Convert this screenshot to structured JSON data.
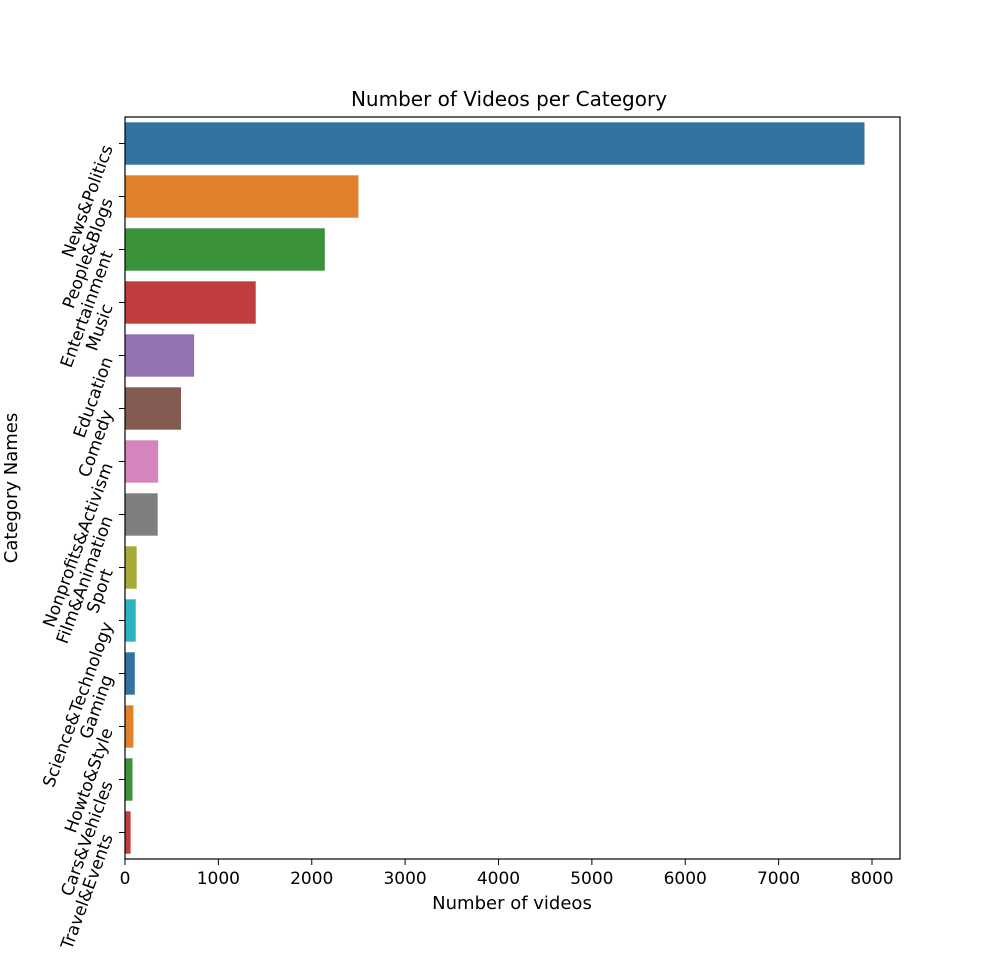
{
  "chart_data": {
    "type": "bar",
    "orientation": "horizontal",
    "title": "Number of Videos per Category",
    "xlabel": "Number of videos",
    "ylabel": "Category Names",
    "categories": [
      "News&Politics",
      "People&Blogs",
      "Entertainment",
      "Music",
      "Education",
      "Comedy",
      "Nonprofits&Activism",
      "Film&Animation",
      "Sport",
      "Science&Technology",
      "Gaming",
      "Howto&Style",
      "Cars&Vehicles",
      "Travel&Events"
    ],
    "values": [
      7920,
      2500,
      2140,
      1400,
      740,
      600,
      355,
      350,
      125,
      115,
      105,
      90,
      80,
      60
    ],
    "colors": [
      "#3274a1",
      "#e1812c",
      "#3a923a",
      "#c03d3e",
      "#9372b2",
      "#845b53",
      "#d684bd",
      "#7f7f7f",
      "#a9aa35",
      "#2eb3c2",
      "#3274a1",
      "#e1812c",
      "#3a923a",
      "#c03d3e"
    ],
    "x_ticks": [
      "0",
      "1000",
      "2000",
      "3000",
      "4000",
      "5000",
      "6000",
      "7000",
      "8000"
    ],
    "xlim": [
      0,
      8300
    ],
    "grid": false,
    "legend": "none"
  }
}
